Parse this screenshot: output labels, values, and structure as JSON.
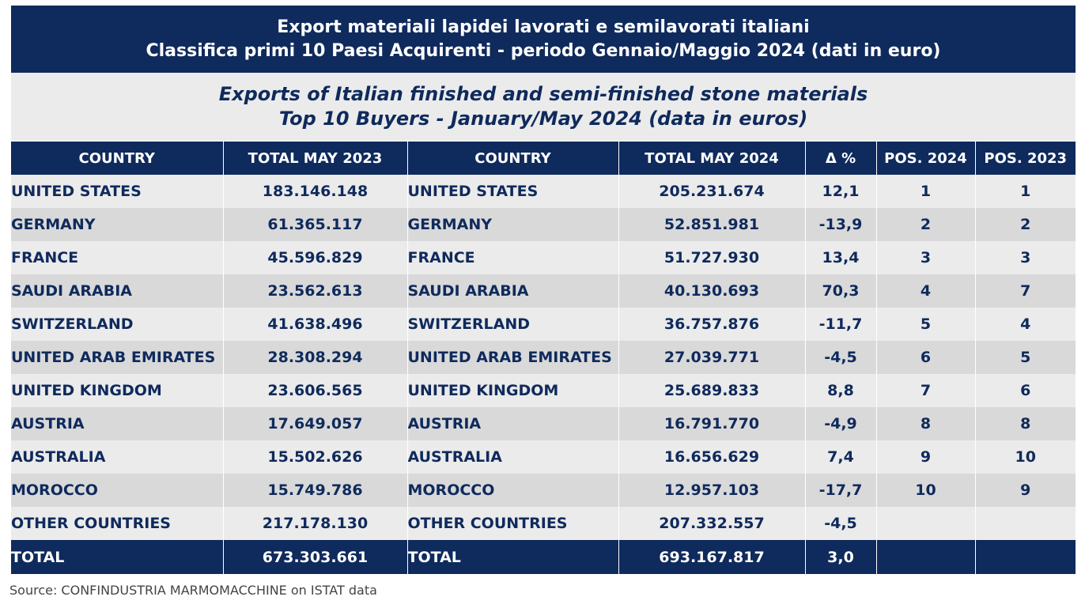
{
  "title_it": {
    "line1": "Export materiali lapidei lavorati e semilavorati italiani",
    "line2": "Classifica primi 10 Paesi Acquirenti - periodo Gennaio/Maggio 2024 (dati in euro)"
  },
  "title_en": {
    "line1": "Exports of Italian finished and semi-finished stone materials",
    "line2": "Top 10 Buyers - January/May 2024 (data in euros)"
  },
  "table": {
    "headers": [
      "COUNTRY",
      "TOTAL MAY 2023",
      "COUNTRY",
      "TOTAL MAY 2024",
      "Δ %",
      "POS. 2024",
      "POS. 2023"
    ],
    "rows": [
      [
        "UNITED STATES",
        "183.146.148",
        "UNITED STATES",
        "205.231.674",
        "12,1",
        "1",
        "1"
      ],
      [
        "GERMANY",
        "61.365.117",
        "GERMANY",
        "52.851.981",
        "-13,9",
        "2",
        "2"
      ],
      [
        "FRANCE",
        "45.596.829",
        "FRANCE",
        "51.727.930",
        "13,4",
        "3",
        "3"
      ],
      [
        "SAUDI ARABIA",
        "23.562.613",
        "SAUDI ARABIA",
        "40.130.693",
        "70,3",
        "4",
        "7"
      ],
      [
        "SWITZERLAND",
        "41.638.496",
        "SWITZERLAND",
        "36.757.876",
        "-11,7",
        "5",
        "4"
      ],
      [
        "UNITED ARAB EMIRATES",
        "28.308.294",
        "UNITED ARAB EMIRATES",
        "27.039.771",
        "-4,5",
        "6",
        "5"
      ],
      [
        "UNITED KINGDOM",
        "23.606.565",
        "UNITED KINGDOM",
        "25.689.833",
        "8,8",
        "7",
        "6"
      ],
      [
        "AUSTRIA",
        "17.649.057",
        "AUSTRIA",
        "16.791.770",
        "-4,9",
        "8",
        "8"
      ],
      [
        "AUSTRALIA",
        "15.502.626",
        "AUSTRALIA",
        "16.656.629",
        "7,4",
        "9",
        "10"
      ],
      [
        "MOROCCO",
        "15.749.786",
        "MOROCCO",
        "12.957.103",
        "-17,7",
        "10",
        "9"
      ],
      [
        "OTHER COUNTRIES",
        "217.178.130",
        "OTHER COUNTRIES",
        "207.332.557",
        "-4,5",
        "",
        ""
      ]
    ],
    "total": [
      "TOTAL",
      "673.303.661",
      "TOTAL",
      "693.167.817",
      "3,0",
      "",
      ""
    ]
  },
  "source": "Source: CONFINDUSTRIA MARMOMACCHINE on ISTAT data",
  "colors": {
    "navy": "#0f2a5c",
    "row_light": "#ebebeb",
    "row_dark": "#d9d9d9"
  }
}
